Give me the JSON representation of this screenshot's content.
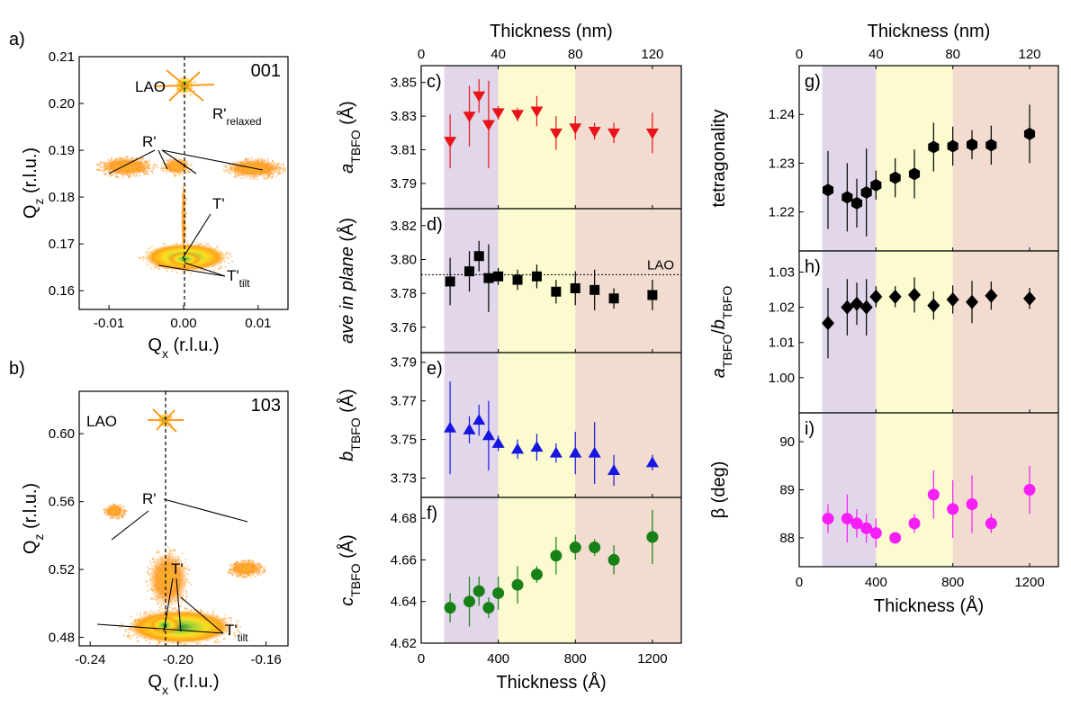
{
  "chart_data": [
    {
      "id": "a",
      "type": "heatmap",
      "panel_label": "a)",
      "reflection": "001",
      "xlabel": "Qx (r.l.u.)",
      "ylabel": "Qz (r.l.u.)",
      "xlim": [
        -0.014,
        0.014
      ],
      "ylim": [
        0.156,
        0.21
      ],
      "xticks": [
        "-0.01",
        "0.00",
        "0.01"
      ],
      "yticks": [
        "0.16",
        "0.17",
        "0.18",
        "0.19",
        "0.20",
        "0.21"
      ],
      "annotations": [
        "LAO",
        "R'relaxed",
        "R'",
        "T'",
        "T'tilt"
      ],
      "peaks": [
        {
          "label": "LAO",
          "x": 0.0,
          "y": 0.203
        },
        {
          "label": "R'relaxed",
          "x": 0.0,
          "y": 0.1935
        },
        {
          "label": "R'",
          "x": -0.0075,
          "y": 0.1845
        },
        {
          "label": "R'",
          "x": -0.0015,
          "y": 0.1845
        },
        {
          "label": "R'",
          "x": 0.0085,
          "y": 0.1845
        },
        {
          "label": "T'",
          "x": 0.0,
          "y": 0.165
        },
        {
          "label": "T'tilt",
          "x": -0.0025,
          "y": 0.1625
        }
      ]
    },
    {
      "id": "b",
      "type": "heatmap",
      "panel_label": "b)",
      "reflection": "103",
      "xlabel": "Qx (r.l.u.)",
      "ylabel": "Qz (r.l.u.)",
      "xlim": [
        -0.245,
        -0.15
      ],
      "ylim": [
        0.475,
        0.625
      ],
      "xticks": [
        "-0.24",
        "-0.20",
        "-0.16"
      ],
      "yticks": [
        "0.48",
        "0.52",
        "0.56",
        "0.60"
      ],
      "annotations": [
        "LAO",
        "R'",
        "T'",
        "T'tilt"
      ],
      "peaks": [
        {
          "label": "LAO",
          "x": -0.2,
          "y": 0.61
        },
        {
          "label": "R'",
          "x": -0.225,
          "y": 0.541
        },
        {
          "label": "R'",
          "x": -0.166,
          "y": 0.566
        },
        {
          "label": "T'",
          "x": -0.203,
          "y": 0.495
        },
        {
          "label": "T'tilt",
          "x": -0.205,
          "y": 0.487
        }
      ]
    },
    {
      "id": "cf",
      "type": "scatter",
      "xlabel": "Thickness (Å)",
      "xlabel_top": "Thickness (nm)",
      "xlim": [
        0,
        1350
      ],
      "xticks": [
        "0",
        "400",
        "800",
        "1200"
      ],
      "xticks_top": [
        "0",
        "40",
        "80",
        "120"
      ],
      "regions": [
        [
          120,
          400
        ],
        [
          400,
          800
        ],
        [
          800,
          1350
        ]
      ],
      "region_colors": [
        "#e2d6ea",
        "#fbfbcf",
        "#f2dcd0"
      ],
      "panels": [
        {
          "label": "c)",
          "ylabel": "aTBFO (Å)",
          "ylim": [
            3.775,
            3.86
          ],
          "yticks": [
            "3.79",
            "3.81",
            "3.83",
            "3.85"
          ],
          "marker": "tri-down",
          "color": "#e8141a",
          "x": [
            150,
            250,
            300,
            350,
            400,
            500,
            600,
            700,
            800,
            900,
            1000,
            1200
          ],
          "y": [
            3.815,
            3.83,
            3.842,
            3.825,
            3.832,
            3.831,
            3.833,
            3.82,
            3.823,
            3.821,
            3.82,
            3.82
          ],
          "err": [
            0.016,
            0.018,
            0.01,
            0.026,
            0.004,
            0.004,
            0.009,
            0.01,
            0.007,
            0.005,
            0.006,
            0.012
          ]
        },
        {
          "label": "d)",
          "ylabel": "ave in plane (Å)",
          "ylim": [
            3.745,
            3.83
          ],
          "yticks": [
            "3.76",
            "3.78",
            "3.80",
            "3.82"
          ],
          "marker": "square",
          "color": "#000000",
          "x": [
            150,
            250,
            300,
            350,
            400,
            500,
            600,
            700,
            800,
            900,
            1000,
            1200
          ],
          "y": [
            3.787,
            3.793,
            3.802,
            3.789,
            3.79,
            3.788,
            3.79,
            3.781,
            3.783,
            3.782,
            3.777,
            3.779
          ],
          "err": [
            0.014,
            0.012,
            0.009,
            0.02,
            0.005,
            0.006,
            0.007,
            0.007,
            0.01,
            0.012,
            0.006,
            0.009
          ],
          "hline": 3.791,
          "hline_label": "LAO"
        },
        {
          "label": "e)",
          "ylabel": "bTBFO (Å)",
          "ylim": [
            3.72,
            3.795
          ],
          "yticks": [
            "3.73",
            "3.75",
            "3.77",
            "3.79"
          ],
          "marker": "tri-up",
          "color": "#1616e0",
          "x": [
            150,
            250,
            300,
            350,
            400,
            500,
            600,
            700,
            800,
            900,
            1000,
            1200
          ],
          "y": [
            3.756,
            3.755,
            3.76,
            3.752,
            3.748,
            3.745,
            3.746,
            3.743,
            3.743,
            3.743,
            3.734,
            3.738
          ],
          "err": [
            0.024,
            0.007,
            0.008,
            0.018,
            0.004,
            0.005,
            0.007,
            0.005,
            0.011,
            0.016,
            0.008,
            0.004
          ]
        },
        {
          "label": "f)",
          "ylabel": "cTBFO (Å)",
          "ylim": [
            4.62,
            4.69
          ],
          "yticks": [
            "4.62",
            "4.64",
            "4.66",
            "4.68"
          ],
          "marker": "circle",
          "color": "#178117",
          "x": [
            150,
            250,
            300,
            350,
            400,
            500,
            600,
            700,
            800,
            900,
            1000,
            1200
          ],
          "y": [
            4.637,
            4.64,
            4.645,
            4.637,
            4.644,
            4.648,
            4.653,
            4.662,
            4.666,
            4.666,
            4.66,
            4.671
          ],
          "err": [
            0.007,
            0.012,
            0.007,
            0.005,
            0.008,
            0.009,
            0.004,
            0.009,
            0.006,
            0.004,
            0.007,
            0.013
          ]
        }
      ]
    },
    {
      "id": "gi",
      "type": "scatter",
      "xlabel": "Thickness (Å)",
      "xlabel_top": "Thickness (nm)",
      "xlim": [
        0,
        1350
      ],
      "xticks": [
        "0",
        "400",
        "800",
        "1200"
      ],
      "xticks_top": [
        "0",
        "40",
        "80",
        "120"
      ],
      "regions": [
        [
          120,
          400
        ],
        [
          400,
          800
        ],
        [
          800,
          1350
        ]
      ],
      "region_colors": [
        "#e2d6ea",
        "#fbfbcf",
        "#f2dcd0"
      ],
      "panels": [
        {
          "label": "g)",
          "ylabel": "tetragonality",
          "ylim": [
            1.212,
            1.25
          ],
          "yticks": [
            "1.22",
            "1.23",
            "1.24"
          ],
          "marker": "hexagon",
          "color": "#000000",
          "x": [
            150,
            250,
            300,
            350,
            400,
            500,
            600,
            700,
            800,
            900,
            1000,
            1200
          ],
          "y": [
            1.2245,
            1.223,
            1.2218,
            1.224,
            1.2255,
            1.227,
            1.2278,
            1.2333,
            1.2335,
            1.2338,
            1.2337,
            1.236
          ],
          "err": [
            0.008,
            0.007,
            0.005,
            0.009,
            0.003,
            0.004,
            0.005,
            0.005,
            0.004,
            0.003,
            0.004,
            0.006
          ]
        },
        {
          "label": "h)",
          "ylabel": "aTBFO/bTBFO",
          "ylim": [
            0.99,
            1.036
          ],
          "yticks": [
            "1.00",
            "1.01",
            "1.02",
            "1.03"
          ],
          "marker": "diamond",
          "color": "#000000",
          "x": [
            150,
            250,
            300,
            350,
            400,
            500,
            600,
            700,
            800,
            900,
            1000,
            1200
          ],
          "y": [
            1.0155,
            1.02,
            1.021,
            1.02,
            1.023,
            1.023,
            1.0235,
            1.0205,
            1.0222,
            1.0215,
            1.0233,
            1.0225
          ],
          "err": [
            0.01,
            0.008,
            0.006,
            0.008,
            0.003,
            0.003,
            0.005,
            0.004,
            0.004,
            0.006,
            0.004,
            0.003
          ]
        },
        {
          "label": "i)",
          "ylabel": "β (deg)",
          "ylim": [
            87.4,
            90.6
          ],
          "yticks": [
            "88",
            "89",
            "90"
          ],
          "marker": "circle",
          "color": "#f51ef5",
          "x": [
            150,
            250,
            300,
            350,
            400,
            500,
            600,
            700,
            800,
            900,
            1000,
            1200
          ],
          "y": [
            88.4,
            88.4,
            88.3,
            88.2,
            88.1,
            88.0,
            88.3,
            88.9,
            88.6,
            88.7,
            88.3,
            89.0
          ],
          "err": [
            0.3,
            0.5,
            0.3,
            0.3,
            0.3,
            0.0,
            0.2,
            0.5,
            0.6,
            0.6,
            0.2,
            0.5
          ]
        }
      ]
    }
  ]
}
